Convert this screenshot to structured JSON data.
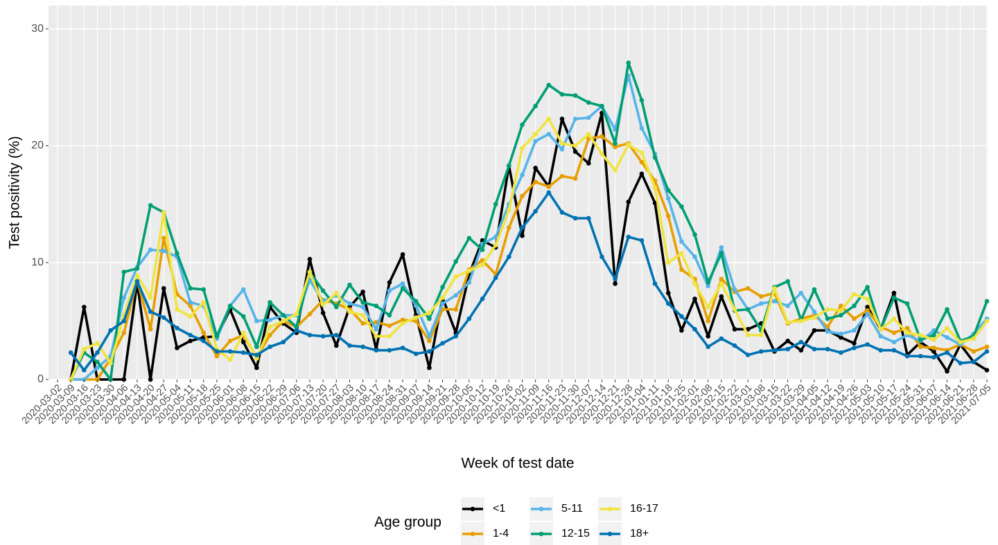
{
  "chart_data": {
    "type": "line",
    "x_label": "Week of test date",
    "y_label": "Test positivity (%)",
    "legend_title": "Age group",
    "legend": "bottom",
    "grid": true,
    "ylim": [
      0,
      32
    ],
    "yticks": [
      0,
      10,
      20,
      30
    ],
    "categories": [
      "2020-03-02",
      "2020-03-09",
      "2020-03-16",
      "2020-03-23",
      "2020-03-30",
      "2020-04-06",
      "2020-04-13",
      "2020-04-20",
      "2020-04-27",
      "2020-05-04",
      "2020-05-11",
      "2020-05-18",
      "2020-05-25",
      "2020-06-01",
      "2020-06-08",
      "2020-06-15",
      "2020-06-22",
      "2020-06-29",
      "2020-07-06",
      "2020-07-13",
      "2020-07-20",
      "2020-07-27",
      "2020-08-03",
      "2020-08-10",
      "2020-08-17",
      "2020-08-24",
      "2020-08-31",
      "2020-09-07",
      "2020-09-14",
      "2020-09-21",
      "2020-09-28",
      "2020-10-05",
      "2020-10-12",
      "2020-10-19",
      "2020-10-26",
      "2020-11-02",
      "2020-11-09",
      "2020-11-16",
      "2020-11-23",
      "2020-11-30",
      "2020-12-07",
      "2020-12-14",
      "2020-12-21",
      "2020-12-28",
      "2021-01-04",
      "2021-01-11",
      "2021-01-18",
      "2021-01-25",
      "2021-02-01",
      "2021-02-08",
      "2021-02-15",
      "2021-02-22",
      "2021-03-01",
      "2021-03-08",
      "2021-03-15",
      "2021-03-22",
      "2021-03-29",
      "2021-04-05",
      "2021-04-12",
      "2021-04-19",
      "2021-04-26",
      "2021-05-03",
      "2021-05-10",
      "2021-05-17",
      "2021-05-24",
      "2021-05-31",
      "2021-06-07",
      "2021-06-14",
      "2021-06-21",
      "2021-06-28",
      "2021-07-05"
    ],
    "series": [
      {
        "name": "<1",
        "color": "#000000",
        "values": [
          null,
          0,
          6.2,
          0,
          0,
          0,
          8.3,
          0,
          7.8,
          2.7,
          3.3,
          3.6,
          3.7,
          6.0,
          3.2,
          1.0,
          6.2,
          4.8,
          4.0,
          10.3,
          5.7,
          2.9,
          6.2,
          7.5,
          2.6,
          8.3,
          10.7,
          5.5,
          1.0,
          7.0,
          4.0,
          9.0,
          11.9,
          11.3,
          18.3,
          12.3,
          18.1,
          16.5,
          22.3,
          19.5,
          18.5,
          22.8,
          8.2,
          15.2,
          17.6,
          15.1,
          7.4,
          4.2,
          6.9,
          3.7,
          7.1,
          4.3,
          4.3,
          4.8,
          2.4,
          3.3,
          2.5,
          4.2,
          4.2,
          3.6,
          3.1,
          6.2,
          4.3,
          7.4,
          2.1,
          3.2,
          2.4,
          0.7,
          3.0,
          1.5,
          0.8
        ]
      },
      {
        "name": "1-4",
        "color": "#E69F00",
        "values": [
          null,
          0,
          0,
          0,
          1.8,
          4,
          8.5,
          4.3,
          12.1,
          7.3,
          6.3,
          4.0,
          2.0,
          3.3,
          3.8,
          1.9,
          3.8,
          5.0,
          4.5,
          5.6,
          6.8,
          6.5,
          6.0,
          4.8,
          4.9,
          4.6,
          5.1,
          5.0,
          3.3,
          6.0,
          6.0,
          9.4,
          10.2,
          9.0,
          13,
          15.7,
          16.9,
          16.5,
          17.4,
          17.2,
          20.6,
          20.8,
          19.9,
          20.2,
          18.6,
          17,
          14,
          9.4,
          8.6,
          5,
          8.6,
          7.5,
          7.8,
          7.1,
          7.4,
          4.8,
          5.2,
          5.5,
          4.5,
          6.3,
          5.2,
          5.9,
          4.5,
          4.0,
          4.4,
          2.8,
          2.7,
          2.5,
          3.0,
          2.4,
          2.8
        ]
      },
      {
        "name": "5-11",
        "color": "#56B4E9",
        "values": [
          null,
          0,
          0,
          1,
          2,
          7,
          9.6,
          11.1,
          11,
          10.5,
          6.6,
          6.3,
          3.5,
          6.3,
          7.7,
          5.0,
          5.1,
          5.5,
          5.5,
          8.5,
          6.7,
          7.2,
          6.5,
          6.2,
          4.3,
          7.6,
          8.2,
          6.3,
          3.7,
          6.5,
          7.2,
          8.3,
          11.6,
          12.2,
          15,
          17.5,
          20.4,
          21,
          19.7,
          22.3,
          22.4,
          23.4,
          21.4,
          26,
          21.5,
          19.3,
          15.5,
          11.8,
          10.5,
          8,
          11.3,
          7.7,
          6,
          6.5,
          6.7,
          6.3,
          7.4,
          5.8,
          4.1,
          3.9,
          4.2,
          5.6,
          3.7,
          3.2,
          3.8,
          3.3,
          4.2,
          3.6,
          3.0,
          3.9,
          5.2
        ]
      },
      {
        "name": "12-15",
        "color": "#009E73",
        "values": [
          null,
          0,
          2.3,
          1.5,
          0,
          9.2,
          9.5,
          14.9,
          14.3,
          10.8,
          7.8,
          7.7,
          3.7,
          6.3,
          5.4,
          2.8,
          6.6,
          5.5,
          4.5,
          9.2,
          7.6,
          6.2,
          8.1,
          6.6,
          6.3,
          5.5,
          7.8,
          6.7,
          5.2,
          7.9,
          10.1,
          12.1,
          11.1,
          15,
          18.3,
          21.8,
          23.4,
          25.2,
          24.4,
          24.3,
          23.7,
          23.4,
          20.2,
          27.1,
          23.9,
          19,
          16.2,
          14.8,
          12.4,
          8.3,
          10.8,
          5.9,
          6.0,
          4.2,
          7.9,
          8.4,
          5.1,
          7.7,
          5.2,
          5.5,
          6.3,
          7.9,
          4.3,
          7.0,
          6.5,
          3.4,
          3.8,
          6.0,
          3.3,
          3.7,
          6.7
        ]
      },
      {
        "name": "16-17",
        "color": "#F0E442",
        "values": [
          null,
          0,
          2.6,
          3.1,
          1.4,
          5.5,
          8.9,
          7.0,
          14.3,
          6.0,
          5.4,
          6.6,
          2.6,
          1.7,
          4.0,
          1.8,
          4.5,
          5.0,
          5.6,
          9.2,
          6.4,
          7.4,
          5.8,
          5.5,
          3.7,
          3.7,
          4.8,
          5.3,
          5.7,
          7.0,
          8.8,
          9.3,
          9.8,
          11.5,
          14.5,
          19.8,
          21.0,
          22.3,
          20.2,
          20.0,
          21.0,
          19.3,
          17.9,
          20.1,
          19.4,
          16.4,
          10.0,
          10.8,
          8.2,
          6.2,
          8.2,
          6.0,
          3.8,
          3.8,
          7.8,
          4.9,
          5.0,
          5.3,
          6.0,
          5.9,
          7.3,
          6.9,
          4.3,
          5.2,
          4.0,
          3.8,
          3.4,
          4.4,
          3.2,
          3.5,
          5.0
        ]
      },
      {
        "name": "18+",
        "color": "#0072B2",
        "values": [
          null,
          2.3,
          0.8,
          2.3,
          4.2,
          5.0,
          8.4,
          5.8,
          5.3,
          4.4,
          3.8,
          3.3,
          2.4,
          2.4,
          2.3,
          2.1,
          2.8,
          3.2,
          4.2,
          3.8,
          3.7,
          3.8,
          2.9,
          2.8,
          2.5,
          2.5,
          2.7,
          2.2,
          2.4,
          3.1,
          3.7,
          5.2,
          6.9,
          8.7,
          10.5,
          13.0,
          14.4,
          16.0,
          14.3,
          13.8,
          13.8,
          10.5,
          8.6,
          12.2,
          11.9,
          8.2,
          6.5,
          5.4,
          4.3,
          2.8,
          3.5,
          2.9,
          2.1,
          2.4,
          2.5,
          2.6,
          3.2,
          2.6,
          2.6,
          2.3,
          2.7,
          3.0,
          2.5,
          2.5,
          2.0,
          2.0,
          1.9,
          2.3,
          1.4,
          1.5,
          2.4
        ]
      }
    ]
  }
}
